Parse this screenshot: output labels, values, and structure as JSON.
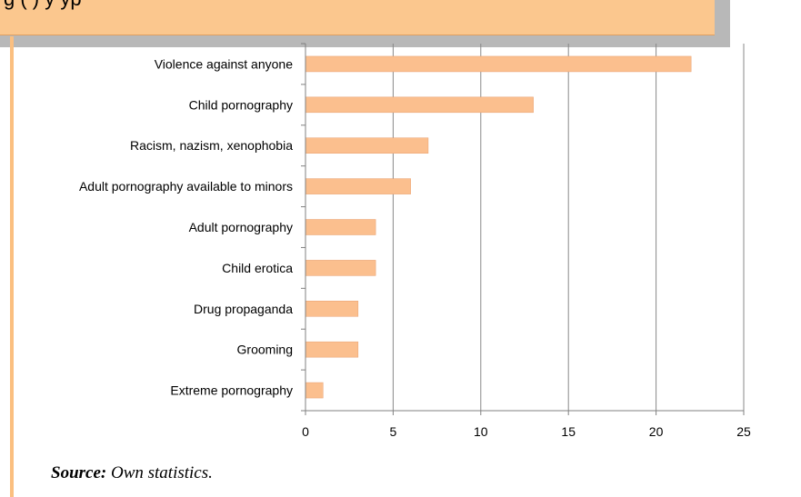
{
  "header": {
    "text": "g                                                    (   )          y  yp"
  },
  "source": {
    "label": "Source:",
    "text": " Own statistics."
  },
  "colors": {
    "bar": "#fbbf8e",
    "bar_stroke": "#e8a070",
    "grid": "#888888",
    "axis": "#808080"
  },
  "chart_data": {
    "type": "bar",
    "orientation": "horizontal",
    "categories": [
      "Violence against anyone",
      "Child pornography",
      "Racism, nazism, xenophobia",
      "Adult pornography available to minors",
      "Adult pornography",
      "Child erotica",
      "Drug propaganda",
      "Grooming",
      "Extreme pornography"
    ],
    "values": [
      22,
      13,
      7,
      6,
      4,
      4,
      3,
      3,
      1
    ],
    "xlim": [
      0,
      25
    ],
    "xticks": [
      0,
      5,
      10,
      15,
      20,
      25
    ],
    "grid": true,
    "title": "",
    "xlabel": "",
    "ylabel": ""
  }
}
